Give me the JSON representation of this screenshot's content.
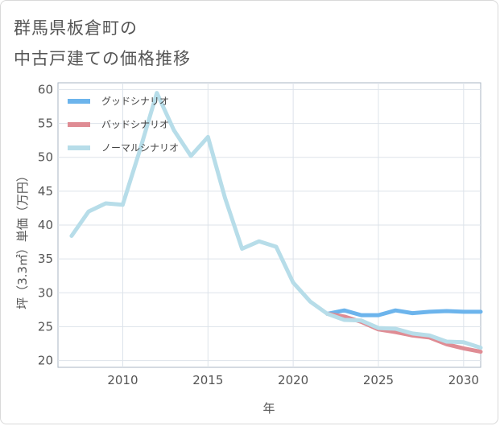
{
  "title": {
    "line1": "群馬県板倉町の",
    "line2": "中古戸建ての価格推移"
  },
  "chart_data": {
    "type": "line",
    "xlabel": "年",
    "ylabel": "坪（3.3㎡）単価（万円）",
    "xlim": [
      2006.2,
      2031
    ],
    "ylim": [
      19,
      61
    ],
    "x_ticks": [
      2010,
      2015,
      2020,
      2025,
      2030
    ],
    "y_ticks": [
      20,
      25,
      30,
      35,
      40,
      45,
      50,
      55,
      60
    ],
    "grid": true,
    "legend_position": "top-left",
    "series": [
      {
        "name": "グッドシナリオ",
        "color": "#6cb4ec",
        "x": [
          2022,
          2023,
          2024,
          2025,
          2026,
          2027,
          2028,
          2029,
          2030,
          2031
        ],
        "y": [
          26.9,
          27.4,
          26.7,
          26.7,
          27.4,
          27.0,
          27.2,
          27.3,
          27.2,
          27.2
        ]
      },
      {
        "name": "バッドシナリオ",
        "color": "#df8c94",
        "x": [
          2022,
          2023,
          2024,
          2025,
          2026,
          2027,
          2028,
          2029,
          2030,
          2031
        ],
        "y": [
          26.9,
          26.5,
          25.7,
          24.6,
          24.2,
          23.7,
          23.4,
          22.4,
          21.8,
          21.3
        ]
      },
      {
        "name": "ノーマルシナリオ",
        "color": "#b7dde9",
        "x": [
          2007,
          2008,
          2009,
          2010,
          2011,
          2012,
          2013,
          2014,
          2015,
          2016,
          2017,
          2018,
          2019,
          2020,
          2021,
          2022,
          2023,
          2024,
          2025,
          2026,
          2027,
          2028,
          2029,
          2030,
          2031
        ],
        "y": [
          38.4,
          42.0,
          43.2,
          43.0,
          51.0,
          59.5,
          54.0,
          50.2,
          53.0,
          44.0,
          36.5,
          37.6,
          36.8,
          31.5,
          28.7,
          26.9,
          26.0,
          25.9,
          24.8,
          24.7,
          24.0,
          23.7,
          22.8,
          22.7,
          21.9
        ]
      }
    ]
  }
}
